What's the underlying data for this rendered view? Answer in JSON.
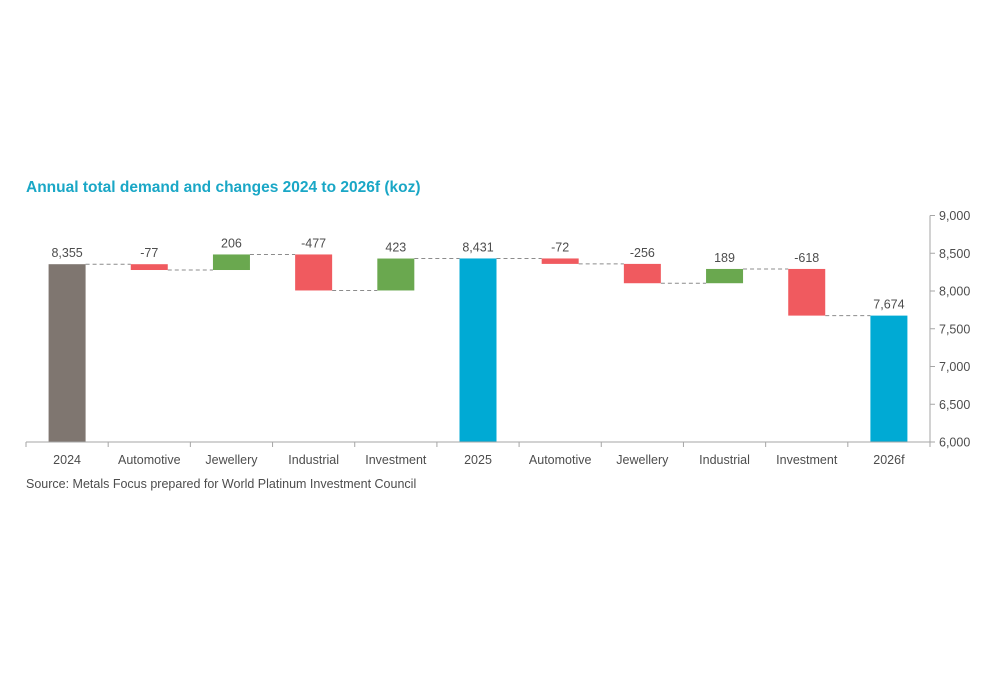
{
  "chart_data": {
    "type": "bar",
    "subtype": "waterfall",
    "title": "Annual total demand and changes 2024 to 2026f (koz)",
    "source": "Source: Metals Focus prepared for World Platinum Investment Council",
    "ylim": [
      6000,
      9000
    ],
    "y_ticks": [
      "6,000",
      "6,500",
      "7,000",
      "7,500",
      "8,000",
      "8,500",
      "9,000"
    ],
    "y_tick_values": [
      6000,
      6500,
      7000,
      7500,
      8000,
      8500,
      9000
    ],
    "y_axis_side": "right",
    "grid": false,
    "connectors": "dashed",
    "categories": [
      "2024",
      "Automotive",
      "Jewellery",
      "Industrial",
      "Investment",
      "2025",
      "Automotive",
      "Jewellery",
      "Industrial",
      "Investment",
      "2026f"
    ],
    "kinds": [
      "total",
      "change",
      "change",
      "change",
      "change",
      "total",
      "change",
      "change",
      "change",
      "change",
      "total"
    ],
    "values": [
      8355,
      -77,
      206,
      -477,
      423,
      8431,
      -72,
      -256,
      189,
      -618,
      7674
    ],
    "value_labels": [
      "8,355",
      "-77",
      "206",
      "-477",
      "423",
      "8,431",
      "-72",
      "-256",
      "189",
      "-618",
      "7,674"
    ],
    "colors": {
      "total_2024": "#7f7670",
      "total_other": "#00aad4",
      "increase": "#6aa84f",
      "decrease": "#f05a5f",
      "title": "#1aa7c6",
      "text": "#4d4d4d",
      "axis": "#a6a6a6",
      "connector": "#8c8c8c"
    }
  }
}
